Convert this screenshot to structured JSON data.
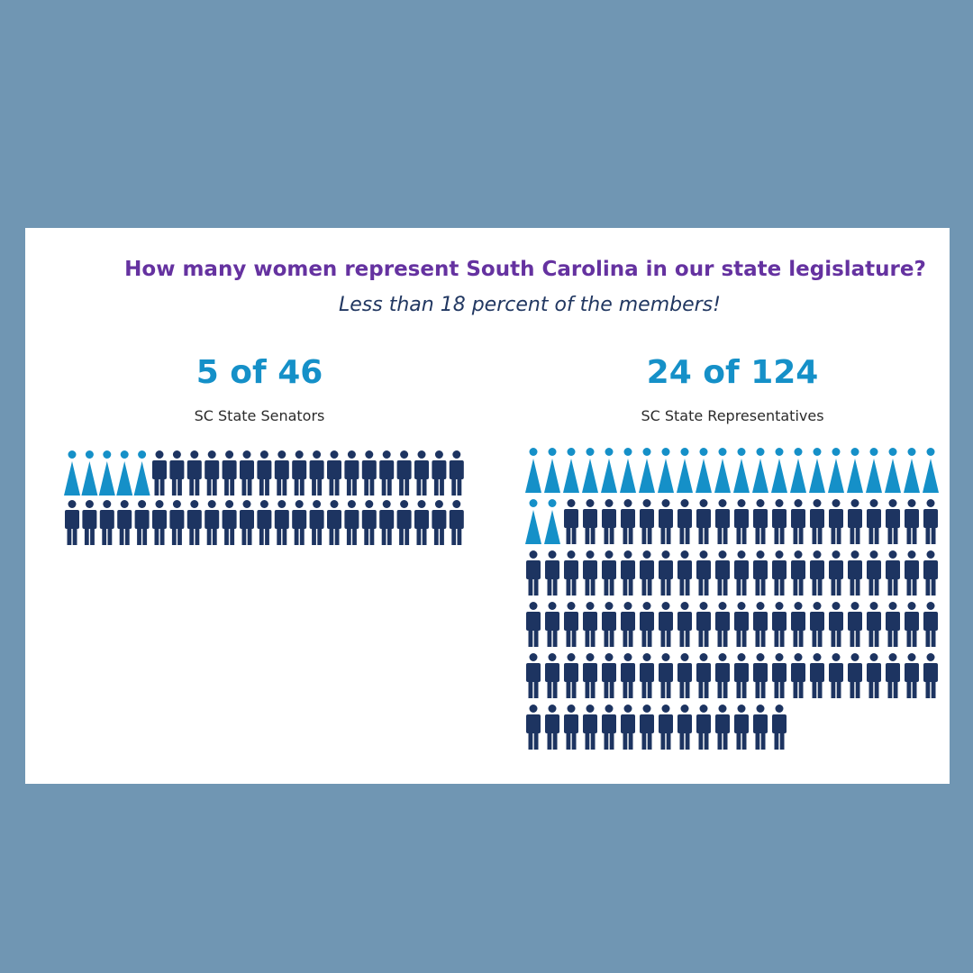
{
  "title": "How many women represent South Carolina in our state legislature?",
  "subtitle": "Less than 18 percent of the members!",
  "colors": {
    "background": "#7096b3",
    "card": "#ffffff",
    "title": "#6532a0",
    "subtitle": "#213761",
    "count": "#1590c8",
    "women": "#1590c8",
    "men": "#1d3461"
  },
  "chart_data": [
    {
      "type": "pictogram",
      "count_label": "5 of 46",
      "label": "SC State Senators",
      "women": 5,
      "total": 46,
      "icons_per_row": 23
    },
    {
      "type": "pictogram",
      "count_label": "24 of 124",
      "label": "SC State Representatives",
      "women": 24,
      "total": 124,
      "icons_per_row": 22
    }
  ]
}
